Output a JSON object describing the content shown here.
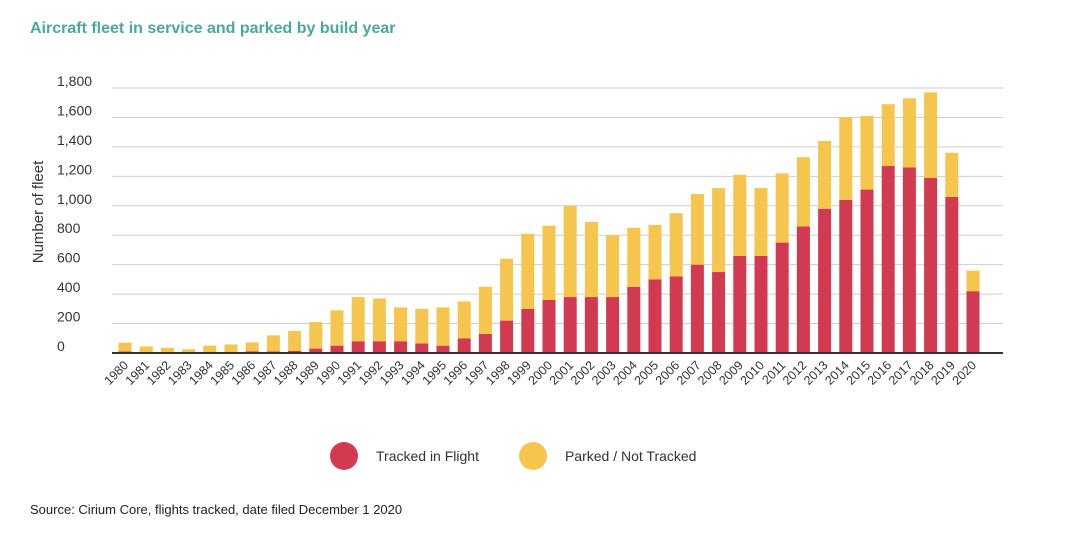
{
  "chart_data": {
    "type": "bar",
    "stacked": true,
    "title": "Aircraft fleet in service and parked by build year",
    "xlabel": "",
    "ylabel": "Number of fleet",
    "ylim": [
      0,
      1800
    ],
    "yticks": [
      "0",
      "200",
      "400",
      "600",
      "800",
      "1,000",
      "1,200",
      "1,400",
      "1,600",
      "1,800"
    ],
    "ytick_values": [
      0,
      200,
      400,
      600,
      800,
      1000,
      1200,
      1400,
      1600,
      1800
    ],
    "grid": true,
    "legend_position": "bottom",
    "categories": [
      "1980",
      "1981",
      "1982",
      "1983",
      "1984",
      "1985",
      "1986",
      "1987",
      "1988",
      "1989",
      "1990",
      "1991",
      "1992",
      "1993",
      "1994",
      "1995",
      "1996",
      "1997",
      "1998",
      "1999",
      "2000",
      "2001",
      "2002",
      "2003",
      "2004",
      "2005",
      "2006",
      "2007",
      "2008",
      "2009",
      "2010",
      "2011",
      "2012",
      "2013",
      "2014",
      "2015",
      "2016",
      "2017",
      "2018",
      "2019",
      "2020"
    ],
    "series": [
      {
        "name": "Tracked in Flight",
        "color": "#d23a52",
        "values": [
          10,
          5,
          5,
          5,
          5,
          8,
          12,
          10,
          15,
          30,
          50,
          80,
          80,
          80,
          65,
          50,
          100,
          130,
          220,
          300,
          360,
          380,
          380,
          380,
          450,
          500,
          520,
          600,
          550,
          660,
          660,
          750,
          860,
          980,
          1040,
          1110,
          1270,
          1260,
          1190,
          1060,
          420
        ]
      },
      {
        "name": "Parked / Not Tracked",
        "color": "#f6c54e",
        "values": [
          60,
          40,
          30,
          20,
          45,
          50,
          60,
          110,
          135,
          180,
          240,
          300,
          290,
          230,
          235,
          260,
          250,
          320,
          420,
          510,
          505,
          620,
          510,
          420,
          400,
          370,
          430,
          480,
          570,
          550,
          460,
          470,
          470,
          460,
          560,
          500,
          420,
          470,
          580,
          300,
          140
        ]
      }
    ],
    "source": "Source: Cirium Core, flights tracked, date filed December 1 2020"
  }
}
